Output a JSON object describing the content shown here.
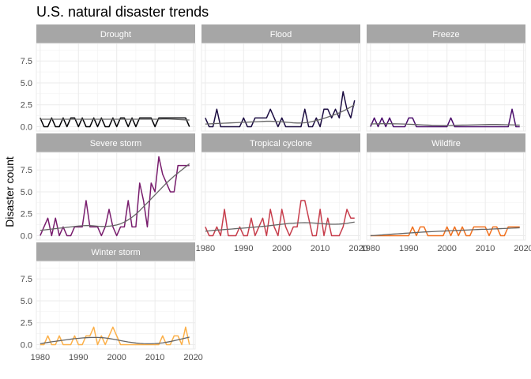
{
  "chart_data": {
    "type": "line",
    "title": "U.S. natural disaster trends",
    "xlabel": "",
    "ylabel": "Disaster count",
    "x": [
      1980,
      1981,
      1982,
      1983,
      1984,
      1985,
      1986,
      1987,
      1988,
      1989,
      1990,
      1991,
      1992,
      1993,
      1994,
      1995,
      1996,
      1997,
      1998,
      1999,
      2000,
      2001,
      2002,
      2003,
      2004,
      2005,
      2006,
      2007,
      2008,
      2009,
      2010,
      2011,
      2012,
      2013,
      2014,
      2015,
      2016,
      2017,
      2018,
      2019
    ],
    "xlim": [
      1979,
      2020.5
    ],
    "ylim": [
      -0.5,
      9.5
    ],
    "x_ticks": [
      1980,
      1990,
      2000,
      2010,
      2020
    ],
    "x_tick_labels": [
      "1980",
      "1990",
      "2000",
      "2010",
      "2020"
    ],
    "y_ticks": [
      0,
      2.5,
      5,
      7.5
    ],
    "y_tick_labels": [
      "0.0",
      "2.5",
      "5.0",
      "7.5"
    ],
    "grid": true,
    "trend_color": "#666666",
    "strip_color": "#a6a6a6",
    "series": [
      {
        "name": "Drought",
        "color": "#000004",
        "values": [
          1,
          0,
          0,
          1,
          0,
          0,
          1,
          0,
          1,
          1,
          0,
          1,
          0,
          0,
          1,
          0,
          1,
          0,
          0,
          1,
          0,
          1,
          1,
          0,
          1,
          0,
          1,
          1,
          1,
          1,
          0,
          1,
          1,
          1,
          1,
          1,
          1,
          1,
          1,
          0
        ],
        "trend": [
          0.85,
          0.85,
          0.85,
          0.85,
          0.85,
          0.85,
          0.85,
          0.85,
          0.85,
          0.85,
          0.85,
          0.85,
          0.85,
          0.85,
          0.85,
          0.85,
          0.85,
          0.85,
          0.85,
          0.85,
          0.85,
          0.85,
          0.85,
          0.85,
          0.85,
          0.85,
          0.85,
          0.85,
          0.85,
          0.85,
          0.85,
          0.85,
          0.88,
          0.88,
          0.86,
          0.84,
          0.82,
          0.8,
          0.78,
          0.76
        ]
      },
      {
        "name": "Flood",
        "color": "#1b0c41",
        "values": [
          1,
          0,
          0,
          2,
          0,
          0,
          0,
          0,
          0,
          0,
          1,
          0,
          0,
          1,
          1,
          1,
          1,
          2,
          1,
          0,
          1,
          0,
          0,
          0,
          0,
          0,
          2,
          0,
          0,
          1,
          0,
          2,
          2,
          1,
          2,
          1,
          4,
          2,
          1,
          3
        ],
        "trend": [
          0.3,
          0.32,
          0.34,
          0.36,
          0.38,
          0.4,
          0.42,
          0.44,
          0.46,
          0.48,
          0.5,
          0.52,
          0.54,
          0.56,
          0.58,
          0.6,
          0.62,
          0.62,
          0.6,
          0.58,
          0.56,
          0.52,
          0.48,
          0.44,
          0.42,
          0.42,
          0.45,
          0.5,
          0.6,
          0.7,
          0.82,
          0.95,
          1.1,
          1.25,
          1.4,
          1.58,
          1.78,
          2.0,
          2.25,
          2.5
        ]
      },
      {
        "name": "Freeze",
        "color": "#4a0c6b",
        "values": [
          0,
          1,
          0,
          1,
          0,
          1,
          0,
          0,
          0,
          0,
          1,
          1,
          0,
          0,
          0,
          0,
          0,
          0,
          0,
          0,
          0,
          1,
          0,
          0,
          0,
          0,
          0,
          0,
          0,
          0,
          0,
          0,
          0,
          0,
          0,
          0,
          0,
          2,
          0,
          0
        ],
        "trend": [
          0.3,
          0.32,
          0.33,
          0.34,
          0.34,
          0.34,
          0.33,
          0.32,
          0.31,
          0.3,
          0.28,
          0.26,
          0.24,
          0.22,
          0.2,
          0.18,
          0.16,
          0.15,
          0.14,
          0.14,
          0.14,
          0.15,
          0.16,
          0.17,
          0.18,
          0.19,
          0.2,
          0.21,
          0.22,
          0.23,
          0.24,
          0.25,
          0.25,
          0.25,
          0.24,
          0.23,
          0.22,
          0.21,
          0.2,
          0.19
        ]
      },
      {
        "name": "Severe storm",
        "color": "#781c6d",
        "values": [
          0,
          1,
          2,
          0,
          2,
          0,
          1,
          0,
          0,
          1,
          1,
          1,
          4,
          1,
          1,
          1,
          0,
          1,
          3,
          1,
          0,
          1,
          1,
          4,
          1,
          1,
          6,
          4,
          1,
          6,
          5,
          9,
          7,
          6,
          5,
          5,
          8,
          8,
          8,
          8
        ],
        "trend": [
          0.6,
          0.65,
          0.7,
          0.75,
          0.8,
          0.85,
          0.9,
          0.95,
          1.0,
          1.05,
          1.1,
          1.13,
          1.15,
          1.15,
          1.12,
          1.08,
          1.05,
          1.05,
          1.08,
          1.14,
          1.22,
          1.35,
          1.55,
          1.8,
          2.1,
          2.45,
          2.85,
          3.3,
          3.75,
          4.2,
          4.65,
          5.1,
          5.55,
          6.0,
          6.4,
          6.8,
          7.15,
          7.5,
          7.85,
          8.2
        ]
      },
      {
        "name": "Tropical cyclone",
        "color": "#c73e4c",
        "values": [
          1,
          0,
          0,
          1,
          0,
          3,
          0,
          0,
          0,
          1,
          0,
          0,
          2,
          0,
          1,
          2,
          0,
          3,
          1,
          0,
          3,
          1,
          0,
          1,
          1,
          4,
          4,
          2,
          0,
          0,
          3,
          0,
          2,
          0,
          0,
          0,
          1,
          3,
          2,
          2
        ],
        "trend": [
          0.5,
          0.55,
          0.6,
          0.63,
          0.66,
          0.7,
          0.73,
          0.76,
          0.8,
          0.83,
          0.86,
          0.9,
          0.94,
          0.98,
          1.02,
          1.06,
          1.1,
          1.15,
          1.2,
          1.25,
          1.3,
          1.35,
          1.4,
          1.42,
          1.45,
          1.47,
          1.48,
          1.47,
          1.45,
          1.42,
          1.38,
          1.35,
          1.32,
          1.3,
          1.3,
          1.32,
          1.35,
          1.4,
          1.48,
          1.55
        ]
      },
      {
        "name": "Wildfire",
        "color": "#f1711f",
        "values": [
          0,
          0,
          0,
          0,
          0,
          0,
          0,
          0,
          0,
          0,
          0,
          1,
          0,
          1,
          1,
          0,
          0,
          0,
          0,
          0,
          1,
          0,
          1,
          0,
          1,
          0,
          0,
          1,
          1,
          1,
          1,
          0,
          1,
          1,
          0,
          0,
          1,
          1,
          1,
          1
        ],
        "trend": [
          0.0,
          0.02,
          0.05,
          0.08,
          0.12,
          0.15,
          0.18,
          0.21,
          0.24,
          0.27,
          0.3,
          0.33,
          0.36,
          0.39,
          0.42,
          0.44,
          0.46,
          0.48,
          0.5,
          0.52,
          0.54,
          0.56,
          0.58,
          0.6,
          0.62,
          0.64,
          0.66,
          0.68,
          0.7,
          0.72,
          0.73,
          0.74,
          0.76,
          0.78,
          0.8,
          0.82,
          0.84,
          0.86,
          0.88,
          0.9
        ]
      },
      {
        "name": "Winter storm",
        "color": "#fcb049",
        "values": [
          0,
          0,
          1,
          0,
          0,
          1,
          0,
          0,
          0,
          1,
          0,
          0,
          1,
          1,
          2,
          0,
          1,
          0,
          1,
          2,
          1,
          0,
          0,
          0,
          0,
          0,
          0,
          0,
          0,
          0,
          0,
          0,
          1,
          0,
          0,
          1,
          1,
          0,
          2,
          0
        ],
        "trend": [
          0.1,
          0.18,
          0.25,
          0.32,
          0.38,
          0.44,
          0.5,
          0.56,
          0.62,
          0.68,
          0.72,
          0.76,
          0.79,
          0.81,
          0.82,
          0.82,
          0.8,
          0.76,
          0.7,
          0.63,
          0.55,
          0.46,
          0.38,
          0.3,
          0.24,
          0.18,
          0.14,
          0.11,
          0.1,
          0.1,
          0.12,
          0.15,
          0.2,
          0.27,
          0.35,
          0.45,
          0.55,
          0.65,
          0.75,
          0.85
        ]
      }
    ]
  }
}
